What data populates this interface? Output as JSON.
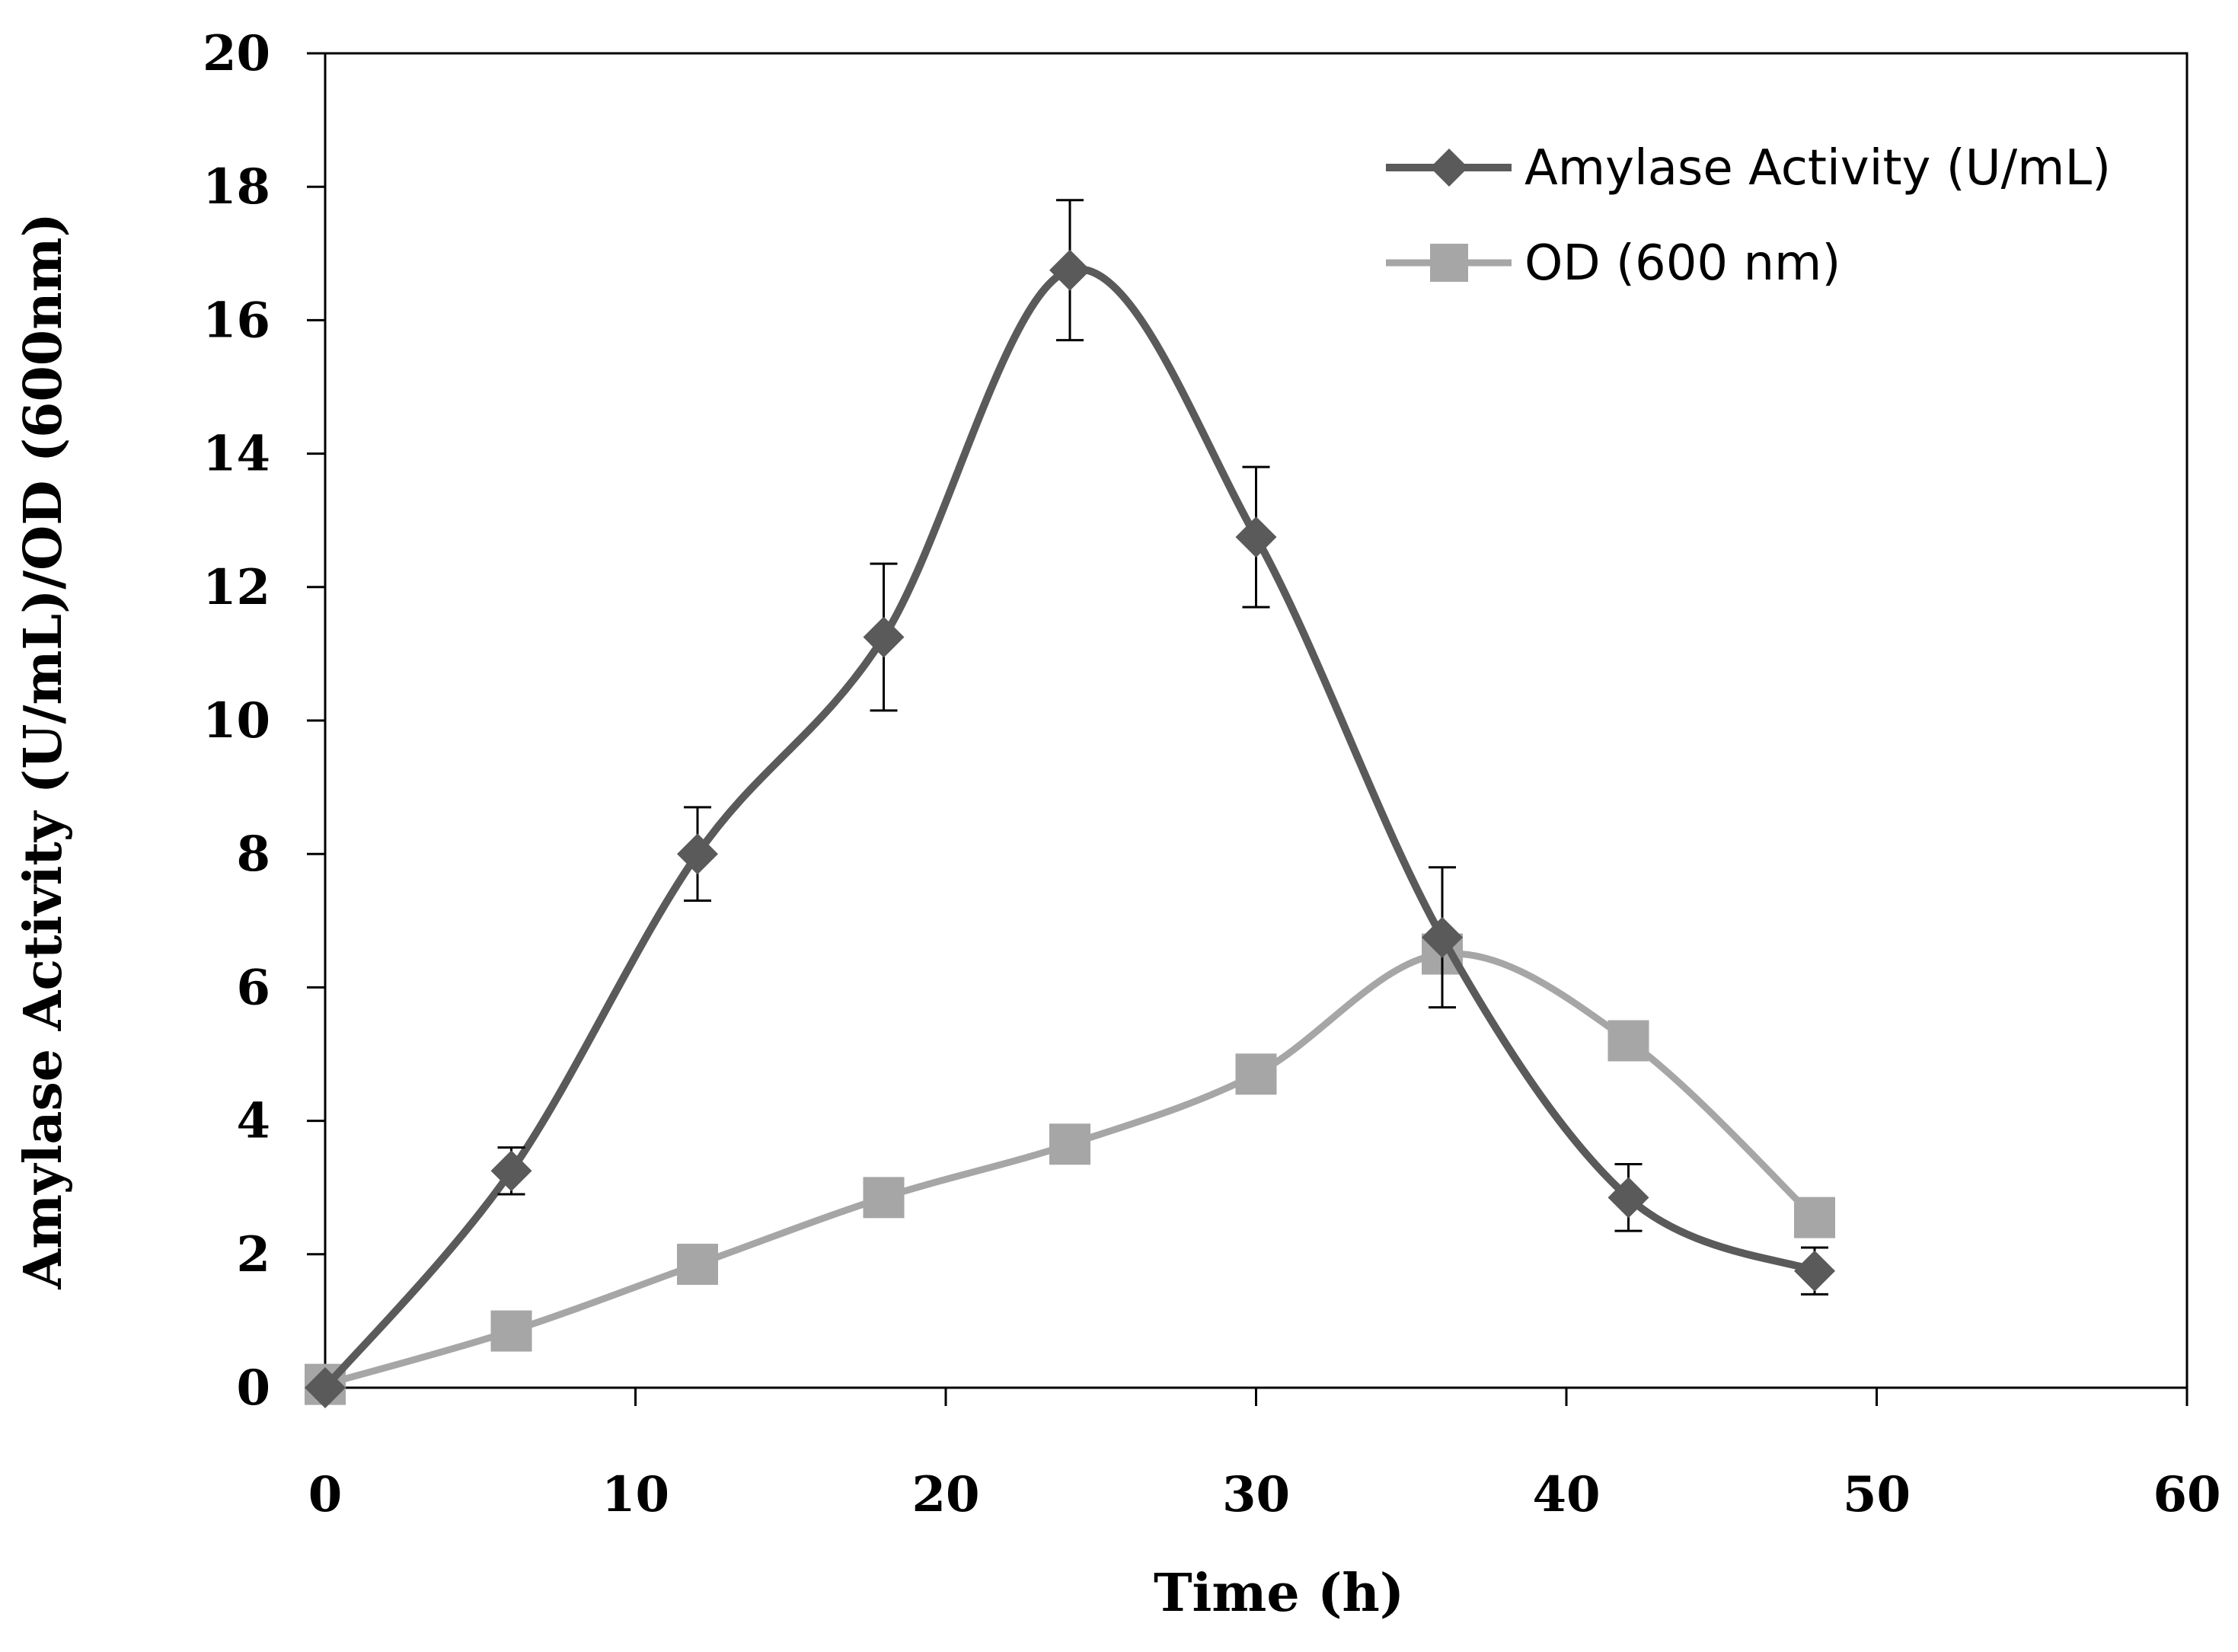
{
  "chart_data": {
    "type": "line",
    "title": "",
    "xlabel": "Time (h)",
    "ylabel": "Amylase  Activity (U/mL)/OD (600nm)",
    "xlim": [
      0,
      60
    ],
    "ylim": [
      0,
      20
    ],
    "x_ticks": [
      0,
      10,
      20,
      30,
      40,
      50,
      60
    ],
    "y_ticks": [
      0,
      2,
      4,
      6,
      8,
      10,
      12,
      14,
      16,
      18,
      20
    ],
    "grid": false,
    "legend_position": "top-right",
    "x": [
      0,
      6,
      12,
      18,
      24,
      30,
      36,
      42,
      48
    ],
    "series": [
      {
        "name": "Amylase Activity (U/mL)",
        "marker": "diamond",
        "color": "#5a5a5a",
        "values": [
          0,
          3.25,
          8.0,
          11.25,
          16.75,
          12.75,
          6.75,
          2.85,
          1.75
        ],
        "errors": [
          0,
          0.35,
          0.7,
          1.1,
          1.05,
          1.05,
          1.05,
          0.5,
          0.35
        ]
      },
      {
        "name": "OD (600 nm)",
        "marker": "square",
        "color": "#a6a6a6",
        "values": [
          0.05,
          0.85,
          1.85,
          2.85,
          3.65,
          4.7,
          6.5,
          5.2,
          2.55
        ]
      }
    ]
  }
}
